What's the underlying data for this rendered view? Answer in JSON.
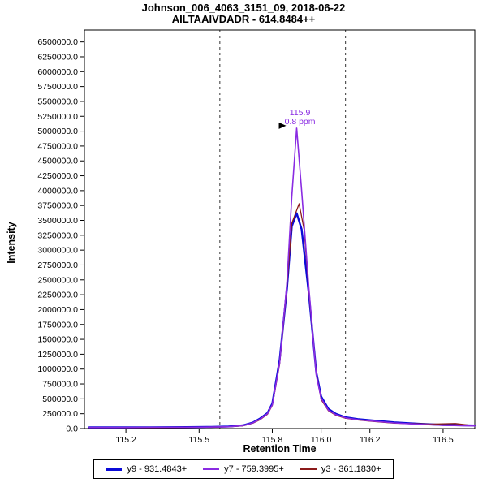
{
  "chart_data": {
    "type": "line",
    "title": "Johnson_006_4063_3151_09, 2018-06-22",
    "subtitle": "AILTAAIVDADR - 614.8484++",
    "xlabel": "Retention Time",
    "ylabel": "Intensity",
    "xlim": [
      115.03,
      116.63
    ],
    "ylim": [
      0,
      6700000
    ],
    "grid": false,
    "legend_position": "bottom",
    "x_ticks": [
      115.2,
      115.5,
      115.8,
      116.0,
      116.2,
      116.5
    ],
    "y_ticks": [
      0,
      250000,
      500000,
      750000,
      1000000,
      1250000,
      1500000,
      1750000,
      2000000,
      2250000,
      2500000,
      2750000,
      3000000,
      3250000,
      3500000,
      3750000,
      4000000,
      4250000,
      4500000,
      4750000,
      5000000,
      5250000,
      5500000,
      5750000,
      6000000,
      6250000,
      6500000
    ],
    "boundaries": [
      115.585,
      116.1
    ],
    "peak_annotation": {
      "rt": 115.9,
      "intensity": 5050000,
      "lines": [
        "115.9",
        "0.8 ppm"
      ],
      "color": "#8a2be2"
    },
    "draw_order": [
      0,
      2,
      1
    ],
    "series": [
      {
        "id": "y9",
        "name": "y9 - 931.4843+",
        "color": "#0b0bd8",
        "width": 2.4,
        "points": [
          [
            115.05,
            20000
          ],
          [
            115.15,
            20000
          ],
          [
            115.3,
            22000
          ],
          [
            115.45,
            25000
          ],
          [
            115.55,
            28000
          ],
          [
            115.62,
            35000
          ],
          [
            115.68,
            55000
          ],
          [
            115.72,
            100000
          ],
          [
            115.75,
            170000
          ],
          [
            115.78,
            260000
          ],
          [
            115.8,
            420000
          ],
          [
            115.83,
            1150000
          ],
          [
            115.86,
            2350000
          ],
          [
            115.88,
            3400000
          ],
          [
            115.9,
            3620000
          ],
          [
            115.92,
            3350000
          ],
          [
            115.95,
            2250000
          ],
          [
            115.98,
            950000
          ],
          [
            116.0,
            540000
          ],
          [
            116.03,
            330000
          ],
          [
            116.06,
            250000
          ],
          [
            116.1,
            190000
          ],
          [
            116.15,
            160000
          ],
          [
            116.2,
            140000
          ],
          [
            116.3,
            105000
          ],
          [
            116.4,
            80000
          ],
          [
            116.5,
            62000
          ],
          [
            116.63,
            52000
          ]
        ]
      },
      {
        "id": "y7",
        "name": "y7 - 759.3995+",
        "color": "#8a2be2",
        "width": 1.6,
        "points": [
          [
            115.05,
            18000
          ],
          [
            115.15,
            18000
          ],
          [
            115.3,
            20000
          ],
          [
            115.45,
            22000
          ],
          [
            115.55,
            26000
          ],
          [
            115.62,
            32000
          ],
          [
            115.68,
            50000
          ],
          [
            115.72,
            95000
          ],
          [
            115.75,
            160000
          ],
          [
            115.78,
            250000
          ],
          [
            115.8,
            400000
          ],
          [
            115.83,
            1100000
          ],
          [
            115.86,
            2450000
          ],
          [
            115.88,
            3900000
          ],
          [
            115.9,
            5050000
          ],
          [
            115.92,
            4000000
          ],
          [
            115.95,
            2350000
          ],
          [
            115.98,
            900000
          ],
          [
            116.0,
            510000
          ],
          [
            116.03,
            310000
          ],
          [
            116.06,
            235000
          ],
          [
            116.1,
            180000
          ],
          [
            116.15,
            150000
          ],
          [
            116.2,
            130000
          ],
          [
            116.3,
            95000
          ],
          [
            116.4,
            72000
          ],
          [
            116.5,
            55000
          ],
          [
            116.63,
            45000
          ]
        ]
      },
      {
        "id": "y3",
        "name": "y3 - 361.1830+",
        "color": "#8b1a1a",
        "width": 1.3,
        "points": [
          [
            115.05,
            15000
          ],
          [
            115.15,
            15000
          ],
          [
            115.3,
            17000
          ],
          [
            115.45,
            20000
          ],
          [
            115.55,
            24000
          ],
          [
            115.62,
            30000
          ],
          [
            115.68,
            46000
          ],
          [
            115.72,
            90000
          ],
          [
            115.75,
            150000
          ],
          [
            115.78,
            240000
          ],
          [
            115.8,
            390000
          ],
          [
            115.83,
            1080000
          ],
          [
            115.86,
            2400000
          ],
          [
            115.88,
            3450000
          ],
          [
            115.91,
            3780000
          ],
          [
            115.93,
            3350000
          ],
          [
            115.95,
            2300000
          ],
          [
            115.98,
            930000
          ],
          [
            116.0,
            490000
          ],
          [
            116.03,
            300000
          ],
          [
            116.06,
            225000
          ],
          [
            116.1,
            175000
          ],
          [
            116.15,
            145000
          ],
          [
            116.2,
            125000
          ],
          [
            116.3,
            90000
          ],
          [
            116.45,
            75000
          ],
          [
            116.55,
            85000
          ],
          [
            116.63,
            48000
          ]
        ]
      }
    ]
  }
}
